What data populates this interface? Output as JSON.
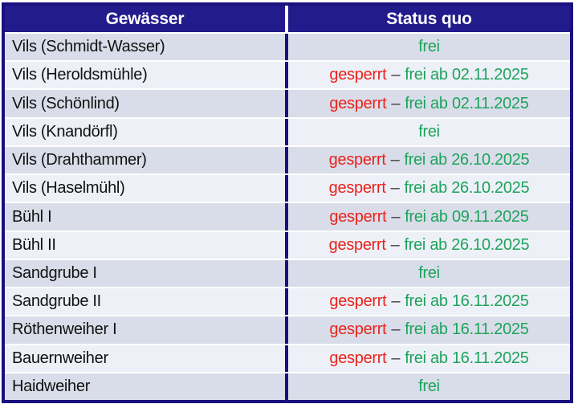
{
  "table": {
    "title": "Gewaesser Status Tabelle",
    "colors": {
      "border": "#1a107e",
      "header_bg": "#221b8c",
      "header_fg": "#ffffff",
      "row_odd": "#d9dde9",
      "row_even": "#edf0f7",
      "red": "#ea231b",
      "green": "#1ea35c",
      "dash": "#3d3d3d"
    },
    "header": {
      "columns": [
        "Gewässer",
        "Status quo"
      ]
    },
    "separator": "–",
    "rows": [
      {
        "name": "Vils (Schmidt-Wasser)",
        "closed": "",
        "free": "frei"
      },
      {
        "name": "Vils (Heroldsmühle)",
        "closed": "gesperrt",
        "free": "frei ab 02.11.2025"
      },
      {
        "name": "Vils (Schönlind)",
        "closed": "gesperrt",
        "free": "frei ab 02.11.2025"
      },
      {
        "name": "Vils (Knandörfl)",
        "closed": "",
        "free": "frei"
      },
      {
        "name": "Vils (Drahthammer)",
        "closed": "gesperrt",
        "free": "frei ab 26.10.2025"
      },
      {
        "name": "Vils (Haselmühl)",
        "closed": "gesperrt",
        "free": "frei ab 26.10.2025"
      },
      {
        "name": "Bühl I",
        "closed": "gesperrt",
        "free": "frei ab 09.11.2025"
      },
      {
        "name": "Bühl II",
        "closed": "gesperrt",
        "free": "frei ab 26.10.2025"
      },
      {
        "name": "Sandgrube I",
        "closed": "",
        "free": "frei"
      },
      {
        "name": "Sandgrube II",
        "closed": "gesperrt",
        "free": "frei ab 16.11.2025"
      },
      {
        "name": "Röthenweiher I",
        "closed": "gesperrt",
        "free": "frei ab 16.11.2025"
      },
      {
        "name": "Bauernweiher",
        "closed": "gesperrt",
        "free": "frei ab 16.11.2025"
      },
      {
        "name": "Haidweiher",
        "closed": "",
        "free": "frei"
      }
    ]
  }
}
